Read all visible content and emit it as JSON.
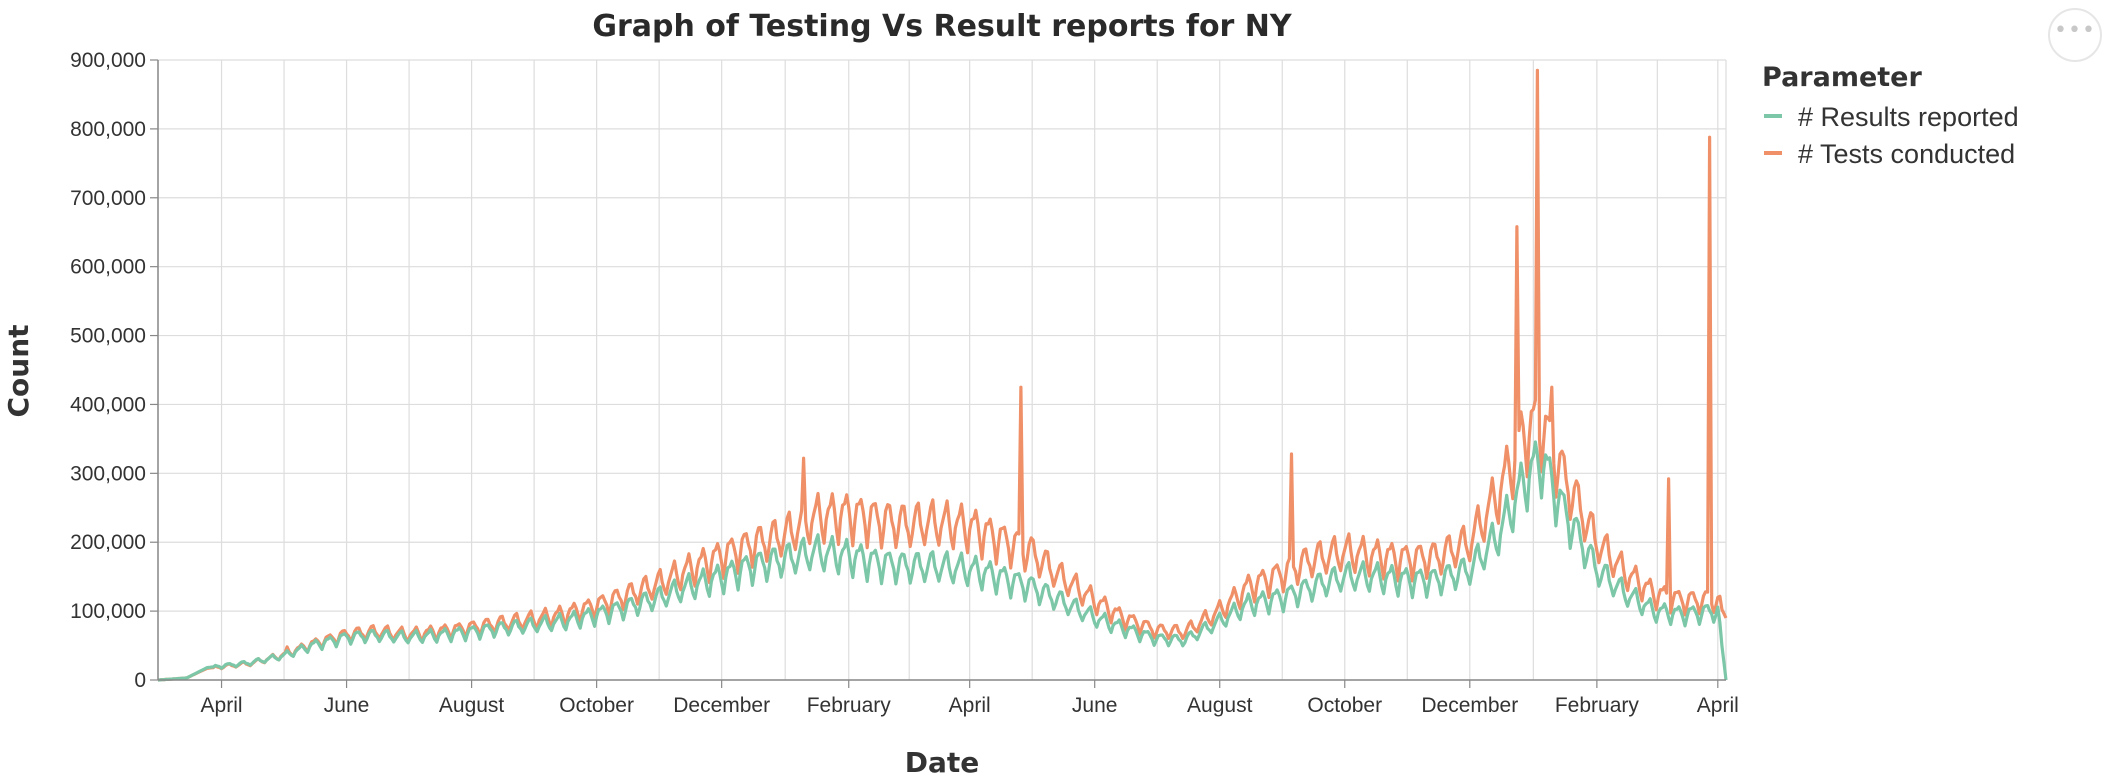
{
  "chart_data": {
    "type": "line",
    "title": "Graph of Testing Vs Result reports for NY",
    "xlabel": "Date",
    "ylabel": "Count",
    "ylim": [
      0,
      900000
    ],
    "xlim": [
      "2020-03-01",
      "2022-04-05"
    ],
    "yticks": [
      "0",
      "100,000",
      "200,000",
      "300,000",
      "400,000",
      "500,000",
      "600,000",
      "700,000",
      "800,000",
      "900,000"
    ],
    "xticks": [
      {
        "date": "2020-04-01",
        "label": "April"
      },
      {
        "date": "2020-06-01",
        "label": "June"
      },
      {
        "date": "2020-08-01",
        "label": "August"
      },
      {
        "date": "2020-10-01",
        "label": "October"
      },
      {
        "date": "2020-12-01",
        "label": "December"
      },
      {
        "date": "2021-02-01",
        "label": "February"
      },
      {
        "date": "2021-04-01",
        "label": "April"
      },
      {
        "date": "2021-06-01",
        "label": "June"
      },
      {
        "date": "2021-08-01",
        "label": "August"
      },
      {
        "date": "2021-10-01",
        "label": "October"
      },
      {
        "date": "2021-12-01",
        "label": "December"
      },
      {
        "date": "2022-02-01",
        "label": "February"
      },
      {
        "date": "2022-04-01",
        "label": "April"
      }
    ],
    "grid": true,
    "legend_title": "Parameter",
    "legend_position": "right",
    "series": [
      {
        "name": "# Results reported",
        "color": "#7cc7a8",
        "points": [
          [
            "2020-03-01",
            0
          ],
          [
            "2020-03-15",
            3000
          ],
          [
            "2020-03-25",
            18000
          ],
          [
            "2020-04-15",
            25000
          ],
          [
            "2020-05-01",
            35000
          ],
          [
            "2020-05-15",
            50000
          ],
          [
            "2020-06-01",
            62000
          ],
          [
            "2020-06-15",
            65000
          ],
          [
            "2020-07-01",
            62000
          ],
          [
            "2020-07-15",
            65000
          ],
          [
            "2020-08-01",
            70000
          ],
          [
            "2020-08-15",
            75000
          ],
          [
            "2020-09-01",
            80000
          ],
          [
            "2020-09-15",
            85000
          ],
          [
            "2020-10-01",
            95000
          ],
          [
            "2020-10-15",
            105000
          ],
          [
            "2020-11-01",
            120000
          ],
          [
            "2020-11-15",
            135000
          ],
          [
            "2020-12-01",
            150000
          ],
          [
            "2020-12-15",
            165000
          ],
          [
            "2021-01-01",
            175000
          ],
          [
            "2021-01-15",
            185000
          ],
          [
            "2021-02-01",
            180000
          ],
          [
            "2021-02-15",
            170000
          ],
          [
            "2021-03-01",
            165000
          ],
          [
            "2021-03-15",
            165000
          ],
          [
            "2021-04-01",
            160000
          ],
          [
            "2021-04-15",
            150000
          ],
          [
            "2021-05-01",
            135000
          ],
          [
            "2021-05-15",
            115000
          ],
          [
            "2021-06-01",
            90000
          ],
          [
            "2021-06-15",
            75000
          ],
          [
            "2021-07-01",
            60000
          ],
          [
            "2021-07-15",
            58000
          ],
          [
            "2021-08-01",
            85000
          ],
          [
            "2021-08-15",
            110000
          ],
          [
            "2021-09-01",
            120000
          ],
          [
            "2021-09-15",
            135000
          ],
          [
            "2021-10-01",
            150000
          ],
          [
            "2021-10-15",
            150000
          ],
          [
            "2021-11-01",
            145000
          ],
          [
            "2021-11-15",
            145000
          ],
          [
            "2021-12-01",
            160000
          ],
          [
            "2021-12-15",
            210000
          ],
          [
            "2021-12-28",
            290000
          ],
          [
            "2022-01-05",
            320000
          ],
          [
            "2022-01-15",
            250000
          ],
          [
            "2022-02-01",
            160000
          ],
          [
            "2022-02-15",
            125000
          ],
          [
            "2022-03-01",
            100000
          ],
          [
            "2022-03-15",
            95000
          ],
          [
            "2022-04-01",
            100000
          ],
          [
            "2022-04-05",
            0
          ]
        ]
      },
      {
        "name": "# Tests conducted",
        "color": "#ef9068",
        "points": [
          [
            "2020-03-01",
            0
          ],
          [
            "2020-03-15",
            3000
          ],
          [
            "2020-03-25",
            17000
          ],
          [
            "2020-04-15",
            24000
          ],
          [
            "2020-05-01",
            36000
          ],
          [
            "2020-05-15",
            52000
          ],
          [
            "2020-06-01",
            66000
          ],
          [
            "2020-06-15",
            70000
          ],
          [
            "2020-07-01",
            66000
          ],
          [
            "2020-07-15",
            70000
          ],
          [
            "2020-08-01",
            76000
          ],
          [
            "2020-08-15",
            82000
          ],
          [
            "2020-09-01",
            88000
          ],
          [
            "2020-09-15",
            95000
          ],
          [
            "2020-10-01",
            108000
          ],
          [
            "2020-10-15",
            122000
          ],
          [
            "2020-11-01",
            140000
          ],
          [
            "2020-11-15",
            160000
          ],
          [
            "2020-12-01",
            180000
          ],
          [
            "2020-12-15",
            195000
          ],
          [
            "2021-01-01",
            210000
          ],
          [
            "2021-01-15",
            235000
          ],
          [
            "2021-02-01",
            240000
          ],
          [
            "2021-02-15",
            232000
          ],
          [
            "2021-03-01",
            225000
          ],
          [
            "2021-03-15",
            228000
          ],
          [
            "2021-04-01",
            222000
          ],
          [
            "2021-04-15",
            205000
          ],
          [
            "2021-05-01",
            185000
          ],
          [
            "2021-05-15",
            150000
          ],
          [
            "2021-06-01",
            115000
          ],
          [
            "2021-06-15",
            90000
          ],
          [
            "2021-07-01",
            72000
          ],
          [
            "2021-07-15",
            70000
          ],
          [
            "2021-08-01",
            100000
          ],
          [
            "2021-08-15",
            135000
          ],
          [
            "2021-09-01",
            155000
          ],
          [
            "2021-09-15",
            175000
          ],
          [
            "2021-10-01",
            185000
          ],
          [
            "2021-10-15",
            180000
          ],
          [
            "2021-11-01",
            175000
          ],
          [
            "2021-11-15",
            178000
          ],
          [
            "2021-12-01",
            200000
          ],
          [
            "2021-12-15",
            270000
          ],
          [
            "2021-12-28",
            360000
          ],
          [
            "2022-01-05",
            370000
          ],
          [
            "2022-01-15",
            300000
          ],
          [
            "2022-02-01",
            200000
          ],
          [
            "2022-02-15",
            155000
          ],
          [
            "2022-03-01",
            125000
          ],
          [
            "2022-03-15",
            115000
          ],
          [
            "2022-04-01",
            115000
          ],
          [
            "2022-04-05",
            90000
          ]
        ],
        "spikes": [
          [
            "2020-05-03",
            48000
          ],
          [
            "2021-01-10",
            322000
          ],
          [
            "2021-04-26",
            425000
          ],
          [
            "2021-09-05",
            328000
          ],
          [
            "2021-12-24",
            658000
          ],
          [
            "2022-01-03",
            885000
          ],
          [
            "2022-01-10",
            425000
          ],
          [
            "2022-03-08",
            292000
          ],
          [
            "2022-03-28",
            788000
          ]
        ]
      }
    ]
  },
  "toolbar": {
    "more_icon": "ellipsis-icon"
  }
}
